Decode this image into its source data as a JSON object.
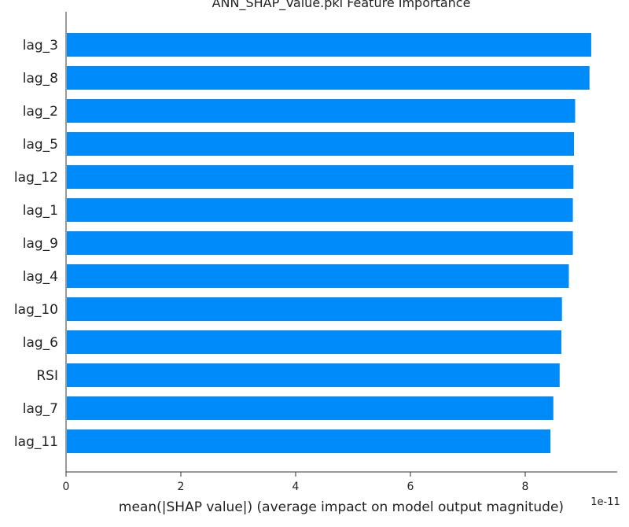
{
  "chart_data": {
    "type": "bar",
    "orientation": "horizontal",
    "title": "ANN_SHAP_Value.pkl Feature Importance",
    "xlabel": "mean(|SHAP value|) (average impact on model output magnitude)",
    "ylabel": "",
    "x_scale_label": "1e-11",
    "xlim": [
      0,
      9.6
    ],
    "xticks": [
      0,
      2,
      4,
      6,
      8
    ],
    "grid": false,
    "bar_color": "#008bfb",
    "categories": [
      "lag_3",
      "lag_8",
      "lag_2",
      "lag_5",
      "lag_12",
      "lag_1",
      "lag_9",
      "lag_4",
      "lag_10",
      "lag_6",
      "RSI",
      "lag_7",
      "lag_11"
    ],
    "values": [
      9.15,
      9.12,
      8.87,
      8.85,
      8.84,
      8.83,
      8.83,
      8.76,
      8.64,
      8.63,
      8.6,
      8.49,
      8.44
    ]
  }
}
